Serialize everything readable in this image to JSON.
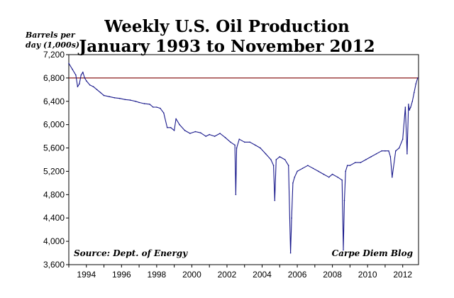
{
  "chart_data": {
    "type": "line",
    "title": "Weekly U.S. Oil Production",
    "subtitle": "January 1993 to November 2012",
    "ylabel_line1": "Barrels per",
    "ylabel_line2": "day (1,000s)",
    "xlabel": "",
    "ylim": [
      3600,
      7200
    ],
    "xlim": [
      1993.0,
      2012.9
    ],
    "yticks": [
      3600,
      4000,
      4400,
      4800,
      5200,
      5600,
      6000,
      6400,
      6800,
      7200
    ],
    "ytick_labels": [
      "3,600",
      "4,000",
      "4,400",
      "4,800",
      "5,200",
      "5,600",
      "6,000",
      "6,400",
      "6,800",
      "7,200"
    ],
    "xticks": [
      1994,
      1996,
      1998,
      2000,
      2002,
      2004,
      2006,
      2008,
      2010,
      2012
    ],
    "xtick_labels": [
      "1994",
      "1996",
      "1998",
      "2000",
      "2002",
      "2004",
      "2006",
      "2008",
      "2010",
      "2012"
    ],
    "grid": false,
    "reference_line": {
      "value": 6800,
      "color": "#8b1a1a"
    },
    "annotations": {
      "source": "Source: Dept. of Energy",
      "credit": "Carpe Diem Blog"
    },
    "series": [
      {
        "name": "Weekly U.S. Oil Production",
        "color": "#1a1a8c",
        "x": [
          1993.0,
          1993.2,
          1993.4,
          1993.5,
          1993.6,
          1993.7,
          1993.8,
          1993.9,
          1994.0,
          1994.2,
          1994.4,
          1994.6,
          1994.8,
          1995.0,
          1995.3,
          1995.6,
          1995.9,
          1996.2,
          1996.5,
          1996.8,
          1997.0,
          1997.3,
          1997.6,
          1997.8,
          1998.0,
          1998.2,
          1998.4,
          1998.6,
          1998.8,
          1999.0,
          1999.1,
          1999.3,
          1999.6,
          1999.9,
          2000.2,
          2000.5,
          2000.8,
          2001.0,
          2001.3,
          2001.6,
          2001.9,
          2002.2,
          2002.45,
          2002.5,
          2002.55,
          2002.7,
          2003.0,
          2003.3,
          2003.6,
          2003.9,
          2004.2,
          2004.5,
          2004.65,
          2004.72,
          2004.8,
          2005.0,
          2005.3,
          2005.5,
          2005.62,
          2005.68,
          2005.75,
          2005.85,
          2006.0,
          2006.3,
          2006.6,
          2006.9,
          2007.2,
          2007.5,
          2007.8,
          2008.0,
          2008.3,
          2008.55,
          2008.62,
          2008.68,
          2008.75,
          2008.85,
          2009.0,
          2009.3,
          2009.6,
          2009.9,
          2010.2,
          2010.5,
          2010.8,
          2011.0,
          2011.2,
          2011.3,
          2011.4,
          2011.6,
          2011.8,
          2012.0,
          2012.15,
          2012.25,
          2012.33,
          2012.38,
          2012.45,
          2012.55,
          2012.65,
          2012.75,
          2012.85
        ],
        "values": [
          7050,
          6950,
          6850,
          6650,
          6700,
          6850,
          6900,
          6800,
          6750,
          6680,
          6650,
          6600,
          6550,
          6500,
          6480,
          6460,
          6450,
          6430,
          6420,
          6400,
          6380,
          6360,
          6350,
          6300,
          6300,
          6280,
          6200,
          5950,
          5950,
          5900,
          6100,
          6000,
          5900,
          5850,
          5880,
          5860,
          5800,
          5830,
          5800,
          5850,
          5780,
          5700,
          5650,
          4800,
          5600,
          5750,
          5700,
          5700,
          5650,
          5600,
          5500,
          5400,
          5300,
          4700,
          5400,
          5450,
          5400,
          5300,
          3800,
          4400,
          5000,
          5100,
          5200,
          5250,
          5300,
          5250,
          5200,
          5150,
          5100,
          5150,
          5100,
          5050,
          3850,
          4700,
          5200,
          5300,
          5300,
          5350,
          5350,
          5400,
          5450,
          5500,
          5550,
          5550,
          5550,
          5450,
          5100,
          5550,
          5600,
          5750,
          6300,
          5500,
          6350,
          6250,
          6300,
          6400,
          6550,
          6700,
          6800
        ]
      }
    ]
  }
}
